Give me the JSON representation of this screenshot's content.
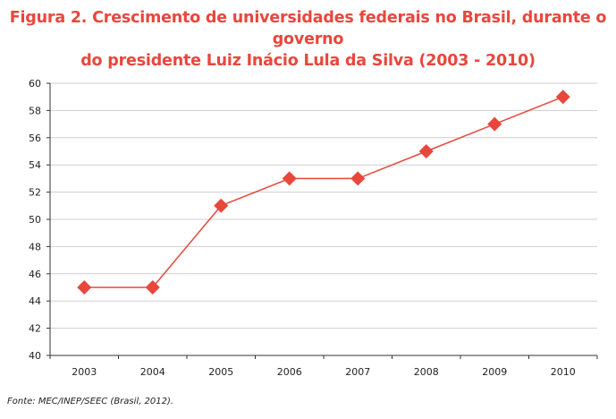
{
  "title": {
    "line1": "Figura 2. Crescimento de universidades federais no Brasil, durante o governo",
    "line2": "do presidente Luiz Inácio Lula da Silva (2003 - 2010)"
  },
  "source": "Fonte: MEC/INEP/SEEC (Brasil, 2012).",
  "colors": {
    "series": "#e8473c",
    "title": "#e8473c",
    "grid": "#cfcfcf",
    "axis": "#333333"
  },
  "chart_data": {
    "type": "line",
    "title": "Figura 2. Crescimento de universidades federais no Brasil, durante o governo do presidente Luiz Inácio Lula da Silva (2003 - 2010)",
    "xlabel": "",
    "ylabel": "",
    "categories": [
      "2003",
      "2004",
      "2005",
      "2006",
      "2007",
      "2008",
      "2009",
      "2010"
    ],
    "series": [
      {
        "values": [
          45,
          45,
          51,
          53,
          53,
          55,
          57,
          59
        ],
        "marker": "diamond"
      }
    ],
    "ylim": [
      40,
      60
    ],
    "yticks": [
      40,
      42,
      44,
      46,
      48,
      50,
      52,
      54,
      56,
      58,
      60
    ],
    "grid": "horizontal",
    "legend": "none"
  }
}
